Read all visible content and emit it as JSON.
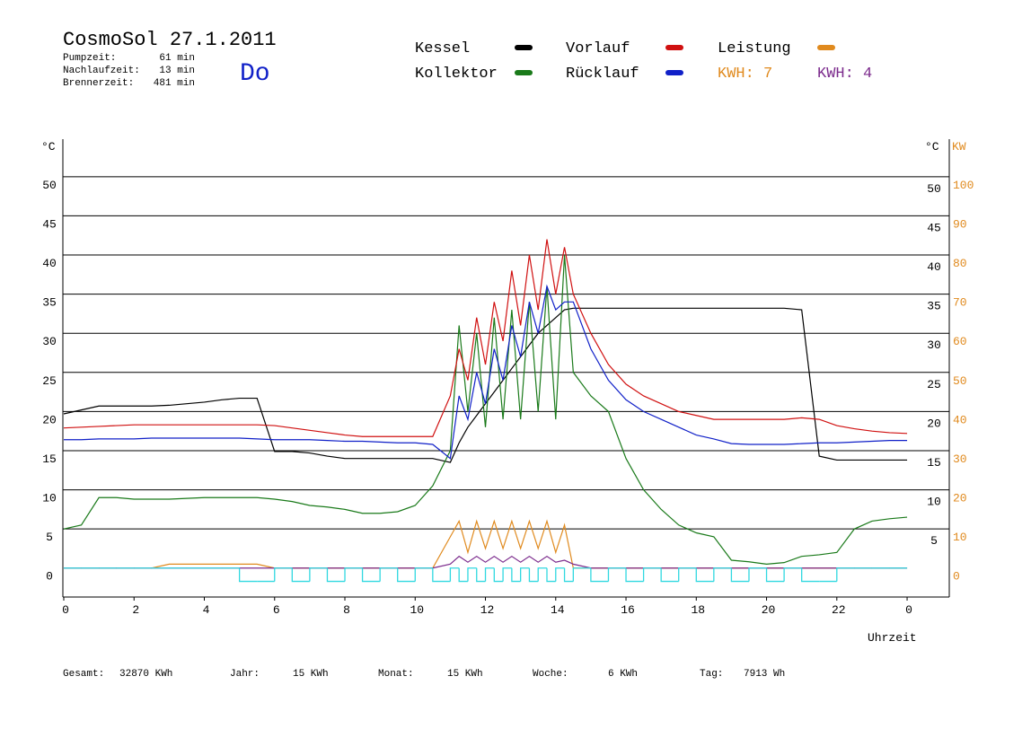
{
  "header": {
    "title": "CosmoSol 27.1.2011",
    "day": "Do",
    "stats": [
      {
        "label": "Pumpzeit:",
        "value": "61 min"
      },
      {
        "label": "Nachlaufzeit:",
        "value": "13 min"
      },
      {
        "label": "Brennerzeit:",
        "value": "481 min"
      }
    ]
  },
  "footer": [
    {
      "label": "Gesamt:",
      "value": "32870 KWh"
    },
    {
      "label": "Jahr:",
      "value": "15 KWh"
    },
    {
      "label": "Monat:",
      "value": "15 KWh"
    },
    {
      "label": "Woche:",
      "value": "6 KWh"
    },
    {
      "label": "Tag:",
      "value": "7913 Wh"
    }
  ],
  "chart_data": {
    "type": "line",
    "y_label": "°C",
    "y_right_label": "°C",
    "y2_label": "KW",
    "x_label": "Uhrzeit",
    "annotations": [
      {
        "text": "KWH: 7",
        "color": "#e08a1e"
      },
      {
        "text": "KWH: 4",
        "color": "#7b2a8c"
      }
    ],
    "x": [
      0,
      0.5,
      1,
      1.5,
      2,
      2.5,
      3,
      3.5,
      4,
      4.5,
      5,
      5.5,
      6,
      6.5,
      7,
      7.5,
      8,
      8.5,
      9,
      9.5,
      10,
      10.5,
      11,
      11.25,
      11.5,
      11.75,
      12,
      12.25,
      12.5,
      12.75,
      13,
      13.25,
      13.5,
      13.75,
      14,
      14.25,
      14.5,
      15,
      15.5,
      16,
      16.5,
      17,
      17.5,
      18,
      18.5,
      19,
      19.5,
      20,
      20.5,
      21,
      21.5,
      22,
      22.5,
      23,
      23.5,
      24
    ],
    "xlim": [
      0,
      25.2
    ],
    "xticks": [
      0,
      2,
      4,
      6,
      8,
      10,
      12,
      14,
      16,
      18,
      20,
      22,
      {
        "value": 24,
        "label": "0"
      }
    ],
    "ylim": [
      -3.7,
      54.8
    ],
    "yticks": [
      0,
      5,
      10,
      15,
      20,
      25,
      30,
      35,
      40,
      45,
      50
    ],
    "yticks_right": [
      5,
      10,
      15,
      20,
      25,
      30,
      35,
      40,
      45,
      50
    ],
    "y2lim": [
      -7.4,
      109.6
    ],
    "y2ticks": [
      0,
      10,
      20,
      30,
      40,
      50,
      60,
      70,
      80,
      90,
      100
    ],
    "grid": true,
    "series": [
      {
        "name": "Kessel",
        "color": "#000000",
        "values": [
          19.7,
          20.2,
          20.7,
          20.7,
          20.7,
          20.7,
          20.8,
          21,
          21.2,
          21.5,
          21.7,
          21.7,
          14.9,
          14.9,
          14.7,
          14.3,
          14,
          14,
          14,
          14,
          14,
          14,
          13.5,
          16,
          18,
          19.5,
          21,
          22.5,
          24,
          25.5,
          27,
          28.5,
          30,
          31,
          32,
          33,
          33.2,
          33.2,
          33.2,
          33.2,
          33.2,
          33.2,
          33.2,
          33.2,
          33.2,
          33.2,
          33.2,
          33.2,
          33.2,
          33,
          14.3,
          13.8,
          13.8,
          13.8,
          13.8,
          13.8
        ]
      },
      {
        "name": "Kollektor",
        "color": "#1a7a1a",
        "values": [
          5,
          5.5,
          9,
          9,
          8.8,
          8.8,
          8.8,
          8.9,
          9,
          9,
          9,
          9,
          8.8,
          8.5,
          8,
          7.8,
          7.5,
          7,
          7,
          7.2,
          8,
          10.5,
          15,
          31,
          20,
          30,
          18,
          32,
          19,
          33,
          19,
          34,
          20,
          36,
          19,
          40,
          25,
          22,
          20,
          14,
          10,
          7.5,
          5.5,
          4.5,
          4,
          1,
          0.8,
          0.5,
          0.7,
          1.5,
          1.7,
          2,
          5,
          6,
          6.3,
          6.5
        ]
      },
      {
        "name": "Vorlauf",
        "color": "#d01010",
        "values": [
          17.9,
          18,
          18.1,
          18.2,
          18.3,
          18.3,
          18.3,
          18.3,
          18.3,
          18.3,
          18.3,
          18.3,
          18.2,
          17.9,
          17.6,
          17.3,
          17,
          16.8,
          16.8,
          16.8,
          16.8,
          16.8,
          22,
          28,
          24,
          32,
          26,
          34,
          29,
          38,
          31,
          40,
          33,
          42,
          35,
          41,
          35,
          30,
          26,
          23.5,
          22,
          21,
          20,
          19.5,
          19,
          19,
          19,
          19,
          19,
          19.2,
          19,
          18.2,
          17.8,
          17.5,
          17.3,
          17.2
        ]
      },
      {
        "name": "Rücklauf",
        "color": "#1020c8",
        "values": [
          16.4,
          16.4,
          16.5,
          16.5,
          16.5,
          16.6,
          16.6,
          16.6,
          16.6,
          16.6,
          16.6,
          16.5,
          16.4,
          16.4,
          16.4,
          16.3,
          16.2,
          16.2,
          16.1,
          16,
          16,
          15.8,
          14,
          22,
          19,
          25,
          21,
          28,
          24,
          31,
          27,
          34,
          30,
          36,
          33,
          34,
          34,
          28,
          24,
          21.5,
          20,
          19,
          18,
          17,
          16.5,
          15.9,
          15.8,
          15.8,
          15.8,
          15.9,
          16,
          16,
          16.1,
          16.2,
          16.3,
          16.3
        ]
      },
      {
        "name": "Leistung",
        "color": "#e08a1e",
        "axis": "y2",
        "values": [
          0,
          0,
          0,
          0,
          0,
          0,
          1,
          1,
          1,
          1,
          1,
          1,
          0,
          0,
          0,
          0,
          0,
          0,
          0,
          0,
          0,
          0,
          8,
          12,
          4,
          12,
          5,
          12,
          5,
          12,
          5,
          12,
          5,
          12,
          4,
          11,
          0,
          0,
          0,
          0,
          0,
          0,
          0,
          0,
          0,
          0,
          0,
          0,
          0,
          0,
          0,
          0,
          0,
          0,
          0,
          0
        ]
      },
      {
        "color": "#7b2a8c",
        "axis": "y2",
        "values": [
          0,
          0,
          0,
          0,
          0,
          0,
          0,
          0,
          0,
          0,
          0,
          0,
          0,
          0,
          0,
          0,
          0,
          0,
          0,
          0,
          0,
          0,
          1,
          3,
          1.5,
          3,
          1.5,
          3,
          1.5,
          3,
          1.5,
          3,
          1.5,
          3,
          1.5,
          2,
          1,
          0,
          0,
          0,
          0,
          0,
          0,
          0,
          0,
          0,
          0,
          0,
          0,
          0,
          0,
          0,
          0,
          0,
          0,
          0
        ]
      },
      {
        "color": "#30d8e0",
        "step": true,
        "values": [
          0,
          0,
          0,
          0,
          0,
          0,
          0,
          0,
          0,
          0,
          -1.7,
          -1.7,
          0,
          -1.7,
          0,
          -1.7,
          0,
          -1.7,
          0,
          -1.7,
          0,
          -1.7,
          0,
          -1.7,
          0,
          -1.7,
          0,
          -1.7,
          0,
          -1.7,
          0,
          -1.7,
          0,
          -1.7,
          0,
          -1.7,
          0,
          -1.7,
          0,
          -1.7,
          0,
          -1.7,
          0,
          -1.7,
          0,
          -1.7,
          0,
          -1.7,
          0,
          -1.7,
          -1.7,
          0,
          0,
          0,
          0,
          0
        ]
      }
    ]
  }
}
